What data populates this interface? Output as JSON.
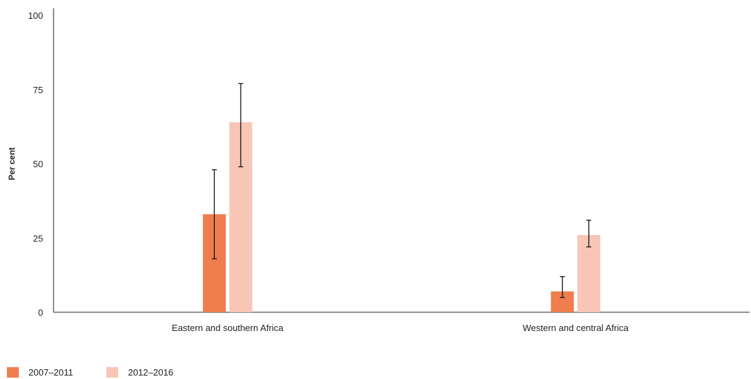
{
  "chart_data": {
    "type": "bar",
    "title": "",
    "xlabel": "",
    "ylabel": "Per cent",
    "ylim": [
      0,
      100
    ],
    "yticks": [
      0,
      25,
      50,
      75,
      100
    ],
    "grid": false,
    "legend_position": "bottom-left",
    "categories": [
      "Eastern and southern Africa",
      "Western and central Africa"
    ],
    "series": [
      {
        "name": "2007–2011",
        "color": "#f07d4d",
        "values": [
          33,
          7
        ],
        "error_low": [
          18,
          5
        ],
        "error_high": [
          48,
          12
        ]
      },
      {
        "name": "2012–2016",
        "color": "#f8c6b7",
        "values": [
          64,
          26
        ],
        "error_low": [
          49,
          22
        ],
        "error_high": [
          77,
          31
        ]
      }
    ]
  }
}
